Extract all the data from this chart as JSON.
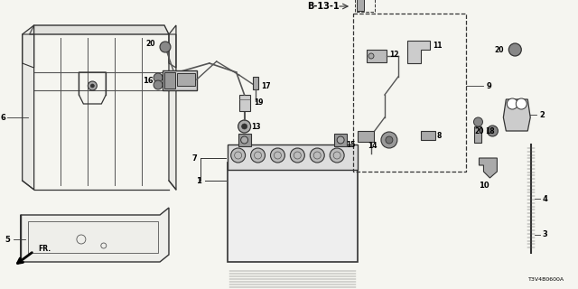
{
  "background_color": "#f5f5f0",
  "part_number_ref": "T3V4B0600A",
  "diagram_ref": "B-13-1",
  "line_color": "#333333",
  "gray": "#555555",
  "light_gray": "#aaaaaa",
  "fig_w": 6.4,
  "fig_h": 3.2,
  "dpi": 100
}
